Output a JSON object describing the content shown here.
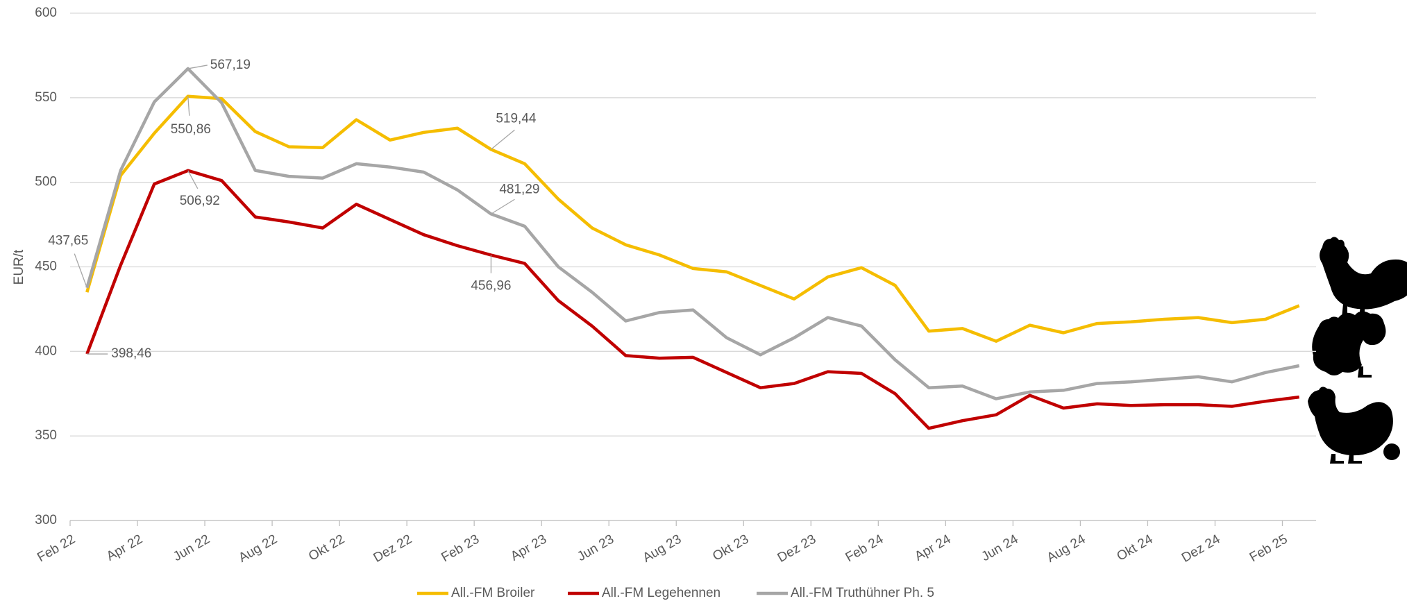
{
  "chart_data": {
    "type": "line",
    "y_label": "EUR/t",
    "categories": [
      "Feb 22",
      null,
      "Apr 22",
      null,
      "Jun 22",
      null,
      "Aug 22",
      null,
      "Okt 22",
      null,
      "Dez 22",
      null,
      "Feb 23",
      null,
      "Apr 23",
      null,
      "Jun 23",
      null,
      "Aug 23",
      null,
      "Okt 23",
      null,
      "Dez 23",
      null,
      "Feb 24",
      null,
      "Apr 24",
      null,
      "Jun 24",
      null,
      "Aug 24",
      null,
      "Okt 24",
      null,
      "Dez 24",
      null,
      "Feb 25"
    ],
    "ylim": [
      300,
      600
    ],
    "yticks": [
      300,
      350,
      400,
      450,
      500,
      550,
      600
    ],
    "grid": true,
    "legend": "bottom",
    "series": [
      {
        "name": "All.-FM Broiler",
        "color": "#f5bd00",
        "values": [
          435,
          504,
          529,
          550.86,
          549.5,
          530,
          521,
          520.5,
          537,
          525,
          529.5,
          532,
          519.44,
          511,
          490,
          473,
          463,
          457,
          449,
          447,
          439,
          431,
          444,
          449.5,
          439,
          412,
          413.5,
          406,
          415.5,
          411,
          416.5,
          417.5,
          419,
          420,
          417,
          419,
          427
        ],
        "value_labels": [
          null,
          null,
          null,
          "550,86",
          null,
          null,
          null,
          null,
          null,
          null,
          null,
          null,
          "519,44",
          null,
          null,
          null,
          null,
          null,
          null,
          null,
          null,
          null,
          null,
          null,
          null,
          null,
          null,
          null,
          null,
          null,
          null,
          null,
          null,
          null,
          null,
          null,
          null
        ]
      },
      {
        "name": "All.-FM Legehennen",
        "color": "#c00000",
        "values": [
          398.46,
          451,
          499,
          506.92,
          501,
          479.5,
          476.5,
          473,
          487,
          478,
          469,
          462.5,
          456.96,
          452,
          430,
          415,
          397.5,
          396,
          396.5,
          387.5,
          378.5,
          381,
          388,
          387,
          375,
          354.5,
          359,
          362.5,
          374,
          366.5,
          369,
          368,
          368.5,
          368.5,
          367.5,
          370.5,
          373
        ],
        "value_labels": [
          "398,46",
          null,
          null,
          "506,92",
          null,
          null,
          null,
          null,
          null,
          null,
          null,
          null,
          "456,96",
          null,
          null,
          null,
          null,
          null,
          null,
          null,
          null,
          null,
          null,
          null,
          null,
          null,
          null,
          null,
          null,
          null,
          null,
          null,
          null,
          null,
          null,
          null,
          null
        ]
      },
      {
        "name": "All.-FM Truthühner Ph. 5",
        "color": "#a6a6a6",
        "values": [
          437.65,
          507,
          547.5,
          567.19,
          547,
          507,
          503.5,
          502.5,
          511,
          509,
          506,
          495.5,
          481.29,
          474,
          450,
          435,
          418,
          423,
          424.5,
          408,
          398,
          408,
          420,
          415,
          395,
          378.5,
          379.5,
          372,
          376,
          377,
          381,
          382,
          383.5,
          385,
          382,
          387.5,
          391.5
        ],
        "value_labels": [
          "437,65",
          null,
          null,
          "567,19",
          null,
          null,
          null,
          null,
          null,
          null,
          null,
          null,
          "481,29",
          null,
          null,
          null,
          null,
          null,
          null,
          null,
          null,
          null,
          null,
          null,
          null,
          null,
          null,
          null,
          null,
          null,
          null,
          null,
          null,
          null,
          null,
          null,
          null
        ]
      }
    ]
  }
}
